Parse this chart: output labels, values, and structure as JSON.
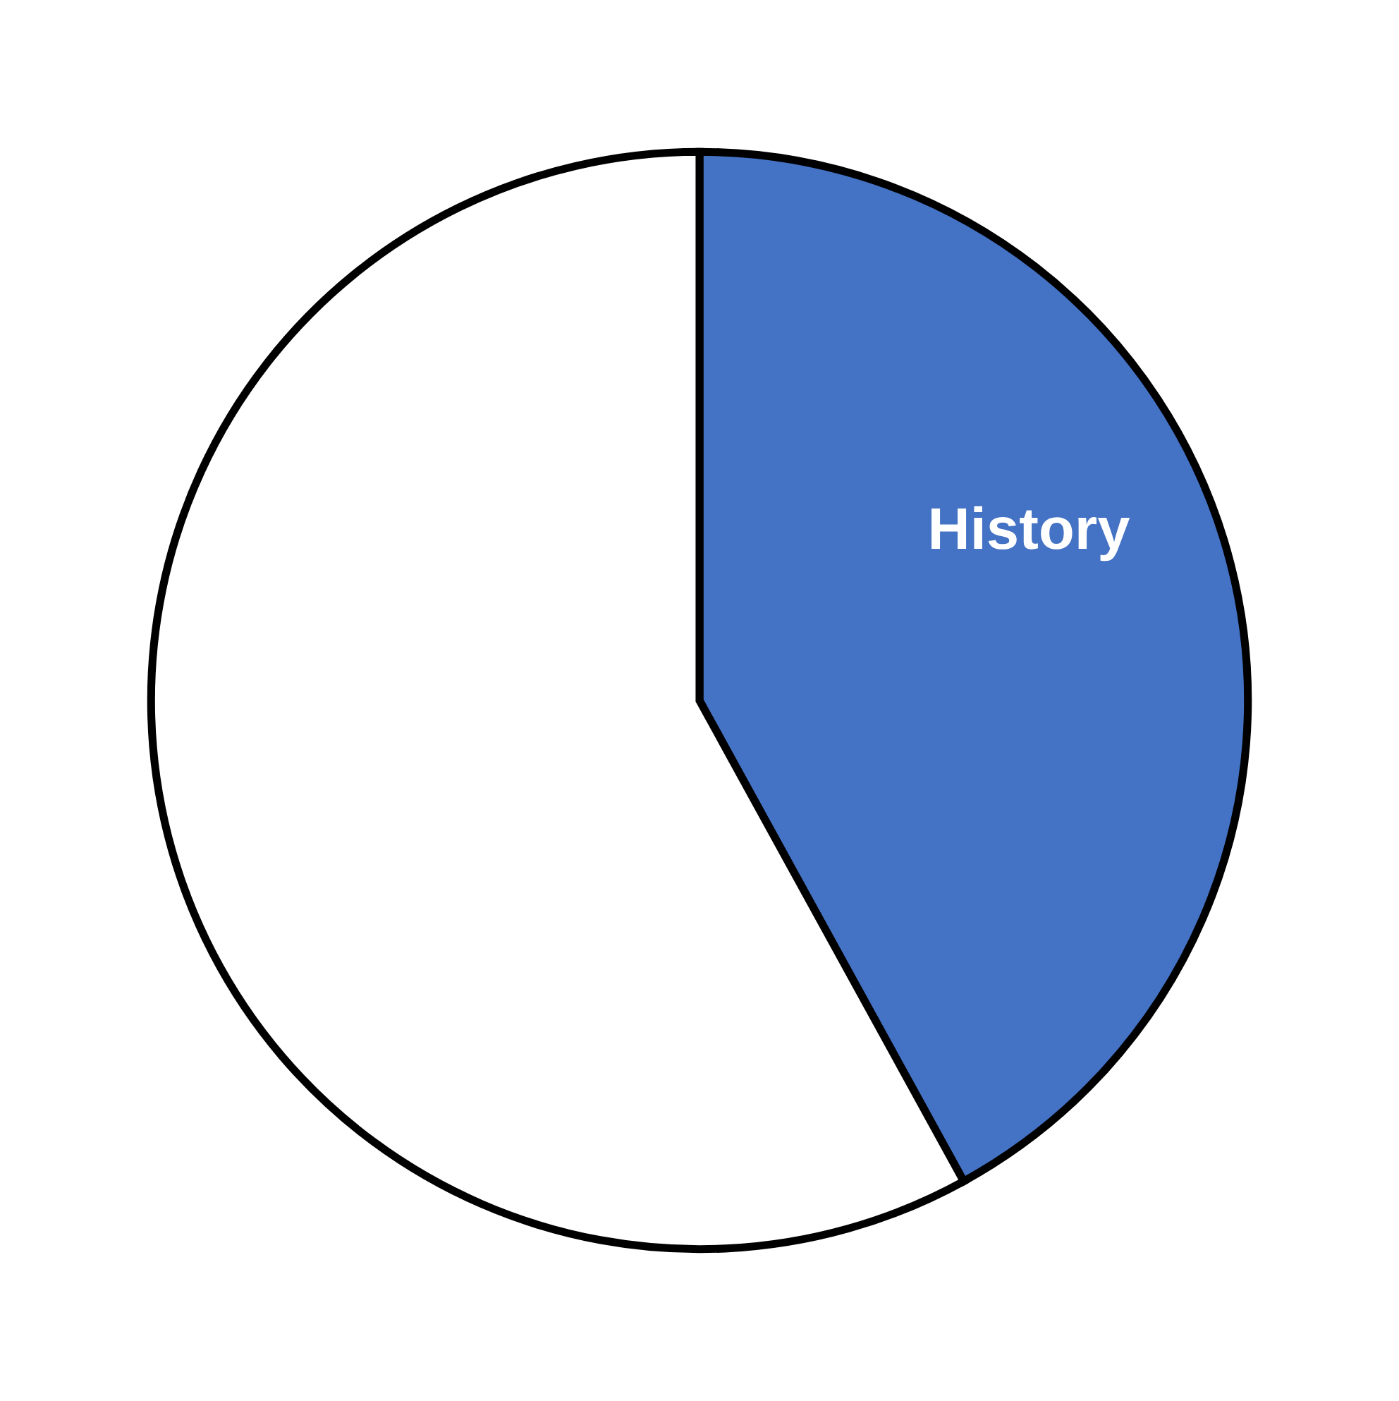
{
  "chart_data": {
    "type": "pie",
    "categories": [
      "History",
      null
    ],
    "values": [
      42,
      58
    ],
    "colors": [
      "#4472c4",
      "#ffffff"
    ]
  }
}
